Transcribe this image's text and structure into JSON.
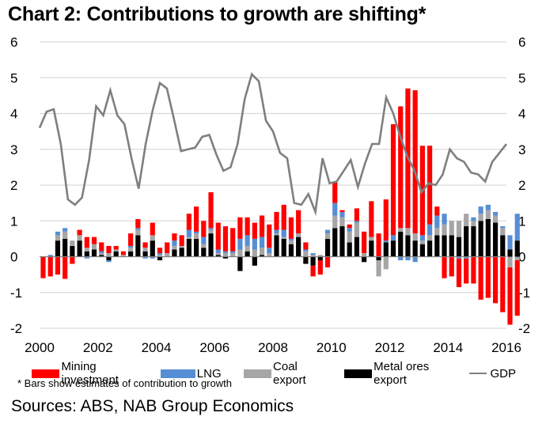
{
  "title": "Chart 2: Contributions to growth are shifting*",
  "note": "* Bars show estimates of contribution to growth",
  "source": "Sources: ABS, NAB Group Economics",
  "colors": {
    "mining": "#ff0000",
    "lng": "#558ed5",
    "coal": "#a6a6a6",
    "metal": "#000000",
    "gdp": "#7f7f7f",
    "grid": "#d9d9d9"
  },
  "legend": [
    {
      "key": "mining",
      "label": "Mining investment"
    },
    {
      "key": "lng",
      "label": "LNG"
    },
    {
      "key": "coal",
      "label": "Coal export"
    },
    {
      "key": "metal",
      "label": "Metal ores export"
    },
    {
      "key": "gdp",
      "label": "GDP"
    }
  ],
  "chart_data": {
    "type": "bar",
    "subtype": "stacked bar with line overlay",
    "title": "Chart 2: Contributions to growth are shifting*",
    "xlabel": "",
    "ylabel": "",
    "ylim": [
      -2,
      6
    ],
    "yticks": [
      6,
      5,
      4,
      3,
      2,
      1,
      0,
      -1,
      -2
    ],
    "y2ticks": [
      6,
      5,
      4,
      3,
      2,
      1,
      0,
      -1,
      -2
    ],
    "xticks": [
      "2000",
      "2002",
      "2004",
      "2006",
      "2008",
      "2010",
      "2012",
      "2014",
      "2016"
    ],
    "x_start": 2000.0,
    "x_end": 2016.0,
    "grid": true,
    "legend_position": "bottom",
    "quarters_start": "2000Q1",
    "series": [
      {
        "name": "Mining investment",
        "key": "mining",
        "type": "bar",
        "values": [
          -0.6,
          -0.55,
          -0.5,
          -0.62,
          -0.2,
          0.15,
          0.3,
          0.2,
          0.25,
          0.2,
          0.1,
          0.1,
          0.35,
          0.25,
          0.15,
          0.35,
          0.15,
          0.3,
          0.2,
          0.3,
          0.45,
          0.7,
          0.45,
          1.0,
          0.75,
          0.7,
          0.65,
          0.6,
          0.5,
          0.45,
          0.6,
          0.65,
          0.5,
          0.7,
          0.6,
          0.65,
          0.2,
          -0.3,
          -0.4,
          -0.3,
          0.6,
          0.05,
          0.1,
          0.35,
          0.6,
          1.0,
          0.65,
          1.15,
          3.1,
          3.4,
          3.9,
          4.0,
          2.5,
          2.2,
          0.25,
          -0.6,
          -0.55,
          -0.8,
          -0.7,
          -0.75,
          -1.2,
          -1.15,
          -1.3,
          -1.55,
          -1.6,
          -1.55
        ]
      },
      {
        "name": "LNG",
        "key": "lng",
        "type": "bar",
        "values": [
          0.0,
          0.05,
          0.1,
          0.1,
          0.0,
          0.0,
          -0.05,
          0.0,
          0.05,
          -0.05,
          0.0,
          0.0,
          0.05,
          0.05,
          -0.05,
          -0.05,
          0.05,
          0.0,
          0.15,
          0.0,
          0.2,
          0.05,
          0.2,
          0.05,
          0.1,
          0.05,
          0.05,
          0.3,
          0.3,
          0.3,
          0.3,
          0.15,
          0.1,
          0.2,
          0.05,
          0.0,
          0.05,
          0.05,
          0.0,
          0.1,
          0.35,
          0.15,
          0.1,
          0.05,
          0.0,
          0.0,
          0.0,
          0.05,
          0.15,
          -0.1,
          -0.1,
          -0.15,
          0.15,
          0.3,
          0.35,
          0.3,
          0.0,
          -0.05,
          -0.05,
          0.1,
          0.2,
          0.15,
          0.1,
          0.05,
          0.4,
          0.75
        ]
      },
      {
        "name": "Coal export",
        "key": "coal",
        "type": "bar",
        "values": [
          0.0,
          0.0,
          0.15,
          0.2,
          0.15,
          0.15,
          0.1,
          0.15,
          0.05,
          0.1,
          0.05,
          0.05,
          0.1,
          0.15,
          0.1,
          0.15,
          0.05,
          0.1,
          0.1,
          0.05,
          0.05,
          0.15,
          0.1,
          0.1,
          0.05,
          0.1,
          0.1,
          0.2,
          0.15,
          0.2,
          0.2,
          0.1,
          0.05,
          0.05,
          0.1,
          0.1,
          0.15,
          0.05,
          0.05,
          0.15,
          0.35,
          0.25,
          0.3,
          0.4,
          0.1,
          0.1,
          -0.45,
          -0.35,
          0.0,
          0.1,
          0.2,
          0.2,
          0.1,
          0.15,
          0.2,
          0.3,
          0.4,
          0.45,
          0.35,
          0.15,
          0.2,
          0.25,
          0.2,
          0.2,
          -0.3,
          -0.1
        ]
      },
      {
        "name": "Metal ores export",
        "key": "metal",
        "type": "bar",
        "values": [
          0.0,
          0.0,
          0.45,
          0.5,
          0.3,
          0.45,
          0.15,
          0.2,
          0.05,
          -0.1,
          0.15,
          0.0,
          0.15,
          0.6,
          0.15,
          0.45,
          -0.1,
          0.0,
          0.2,
          0.25,
          0.5,
          0.5,
          0.25,
          0.65,
          0.05,
          -0.05,
          0.0,
          -0.4,
          0.15,
          -0.25,
          0.05,
          0.0,
          0.6,
          0.5,
          0.35,
          0.55,
          -0.2,
          -0.25,
          -0.1,
          0.5,
          0.8,
          0.85,
          0.4,
          0.55,
          -0.15,
          0.45,
          -0.1,
          0.4,
          0.45,
          0.7,
          0.6,
          0.45,
          0.35,
          0.45,
          0.6,
          0.6,
          0.6,
          0.55,
          0.85,
          0.85,
          1.0,
          1.05,
          0.95,
          0.6,
          0.2,
          0.45
        ]
      },
      {
        "name": "GDP",
        "key": "gdp",
        "type": "line",
        "values": [
          3.6,
          4.05,
          4.12,
          3.15,
          1.6,
          1.45,
          1.65,
          2.7,
          4.2,
          3.95,
          4.65,
          3.95,
          3.7,
          2.75,
          1.9,
          3.15,
          4.1,
          4.85,
          4.7,
          3.85,
          2.95,
          3.0,
          3.05,
          3.35,
          3.4,
          2.85,
          2.4,
          2.5,
          3.15,
          4.4,
          5.1,
          4.9,
          3.8,
          3.5,
          2.9,
          2.75,
          1.5,
          1.45,
          1.75,
          1.25,
          2.75,
          2.05,
          2.1,
          2.4,
          2.7,
          1.95,
          2.6,
          3.15,
          3.15,
          4.45,
          4.0,
          3.35,
          2.8,
          2.4,
          1.8,
          2.05,
          2.0,
          2.3,
          3.0,
          2.75,
          2.65,
          2.35,
          2.3,
          2.1,
          2.65,
          2.9,
          3.15
        ]
      }
    ]
  }
}
